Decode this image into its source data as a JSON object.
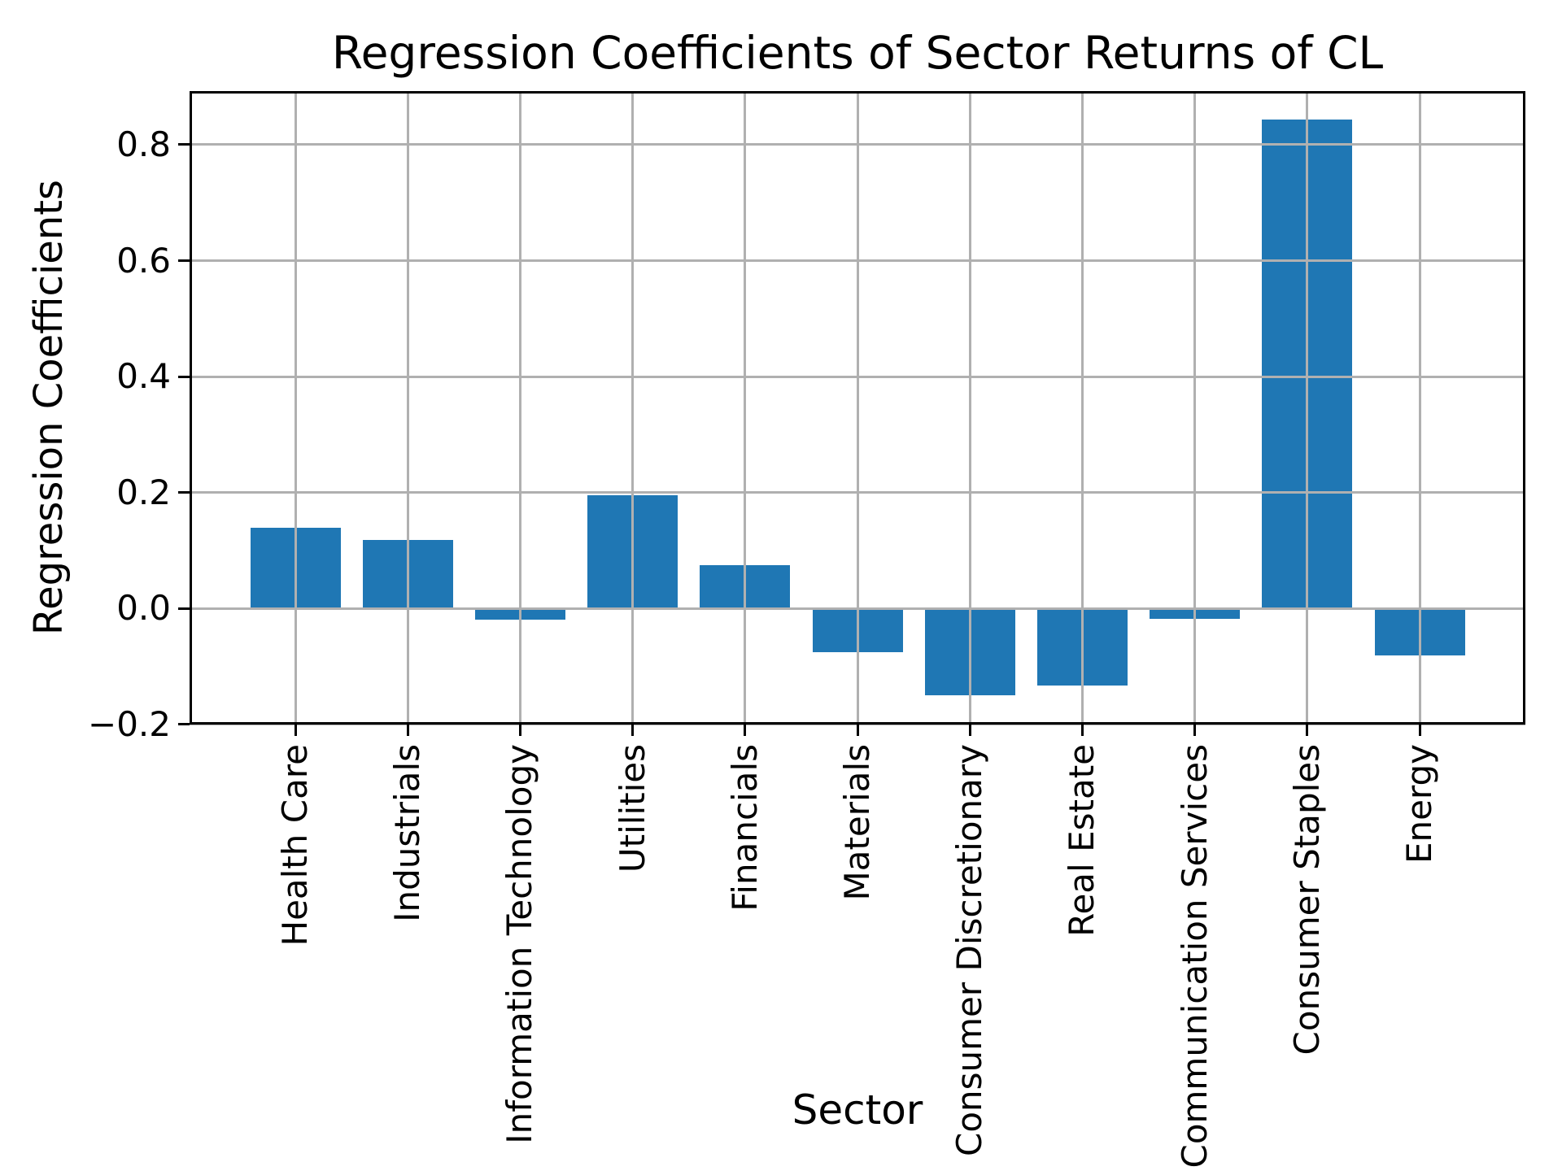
{
  "figure": {
    "title": "Regression Coefficients of Sector Returns of CL",
    "xlabel": "Sector",
    "ylabel": "Regression Coefficients"
  },
  "chart_data": {
    "type": "bar",
    "title": "Regression Coefficients of Sector Returns of CL",
    "xlabel": "Sector",
    "ylabel": "Regression Coefficients",
    "categories": [
      "Health Care",
      "Industrials",
      "Information Technology",
      "Utilities",
      "Financials",
      "Materials",
      "Consumer Discretionary",
      "Real Estate",
      "Communication Services",
      "Consumer Staples",
      "Energy"
    ],
    "values": [
      0.139,
      0.118,
      -0.019,
      0.195,
      0.074,
      -0.076,
      -0.15,
      -0.133,
      -0.018,
      0.844,
      -0.082
    ],
    "ylim": [
      -0.2005,
      0.8925
    ],
    "yticks": [
      0.8,
      0.6,
      0.4,
      0.2,
      0.0,
      -0.2
    ],
    "ytick_labels": [
      "0.8",
      "0.6",
      "0.4",
      "0.2",
      "0.0",
      "−0.2"
    ],
    "grid": true,
    "grid_on_top": true,
    "legend_position": "none",
    "xtick_rotation_deg": 90,
    "bar_color": "#1f77b4",
    "grid_color": "#b0b0b0",
    "frame_color": "#000000",
    "background_color": "#ffffff"
  }
}
